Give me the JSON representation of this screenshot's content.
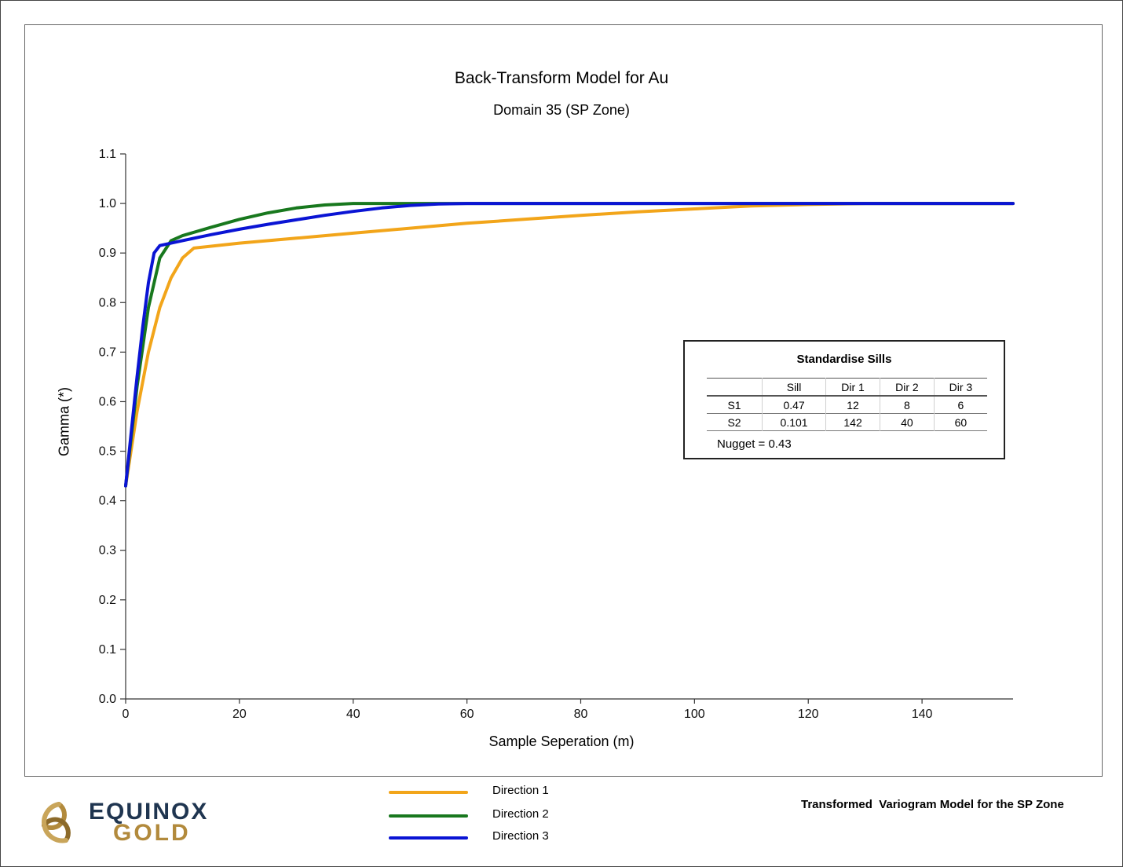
{
  "chart_data": {
    "type": "line",
    "title": "Back-Transform Model for Au",
    "subtitle": "Domain 35 (SP Zone)",
    "xlabel": "Sample Seperation (m)",
    "ylabel": "Gamma (*)",
    "xlim": [
      0,
      156
    ],
    "ylim": [
      0,
      1.1
    ],
    "xticks": [
      0,
      20,
      40,
      60,
      80,
      100,
      120,
      140
    ],
    "yticks": [
      "0.0",
      "0.1",
      "0.2",
      "0.3",
      "0.4",
      "0.5",
      "0.6",
      "0.7",
      "0.8",
      "0.9",
      "1.0",
      "1.1"
    ],
    "grid": false,
    "legend_position": "bottom",
    "series": [
      {
        "name": "Direction 1",
        "color": "#f2a51a",
        "x": [
          0,
          2,
          4,
          6,
          8,
          10,
          12,
          20,
          30,
          40,
          50,
          60,
          70,
          80,
          90,
          100,
          110,
          120,
          130,
          140,
          156
        ],
        "y": [
          0.43,
          0.58,
          0.7,
          0.79,
          0.85,
          0.89,
          0.91,
          0.92,
          0.93,
          0.94,
          0.95,
          0.96,
          0.968,
          0.976,
          0.983,
          0.989,
          0.995,
          0.998,
          1.0,
          1.0,
          1.0
        ]
      },
      {
        "name": "Direction 2",
        "color": "#18781e",
        "x": [
          0,
          2,
          4,
          6,
          8,
          10,
          15,
          20,
          25,
          30,
          35,
          40,
          50,
          60,
          80,
          100,
          120,
          140,
          156
        ],
        "y": [
          0.43,
          0.63,
          0.79,
          0.89,
          0.925,
          0.935,
          0.952,
          0.968,
          0.981,
          0.991,
          0.997,
          1.0,
          1.0,
          1.0,
          1.0,
          1.0,
          1.0,
          1.0,
          1.0
        ]
      },
      {
        "name": "Direction 3",
        "color": "#0a14d4",
        "x": [
          0,
          1,
          2,
          3,
          4,
          5,
          6,
          8,
          10,
          15,
          20,
          25,
          30,
          35,
          40,
          45,
          50,
          55,
          60,
          80,
          100,
          120,
          140,
          156
        ],
        "y": [
          0.43,
          0.54,
          0.65,
          0.75,
          0.84,
          0.9,
          0.915,
          0.92,
          0.925,
          0.937,
          0.948,
          0.958,
          0.967,
          0.976,
          0.984,
          0.991,
          0.996,
          0.999,
          1.0,
          1.0,
          1.0,
          1.0,
          1.0,
          1.0
        ]
      }
    ]
  },
  "sills": {
    "title": "Standardise Sills",
    "headers": [
      "",
      "Sill",
      "Dir 1",
      "Dir 2",
      "Dir 3"
    ],
    "rows": [
      [
        "S1",
        "0.47",
        "12",
        "8",
        "6"
      ],
      [
        "S2",
        "0.101",
        "142",
        "40",
        "60"
      ]
    ],
    "nugget": "Nugget = 0.43"
  },
  "caption": "Transformed  Variogram Model for the SP Zone",
  "logo": {
    "line1": "EQUINOX",
    "line2": "GOLD",
    "colors": {
      "navy": "#1f3550",
      "gold": "#b28a3c"
    }
  }
}
